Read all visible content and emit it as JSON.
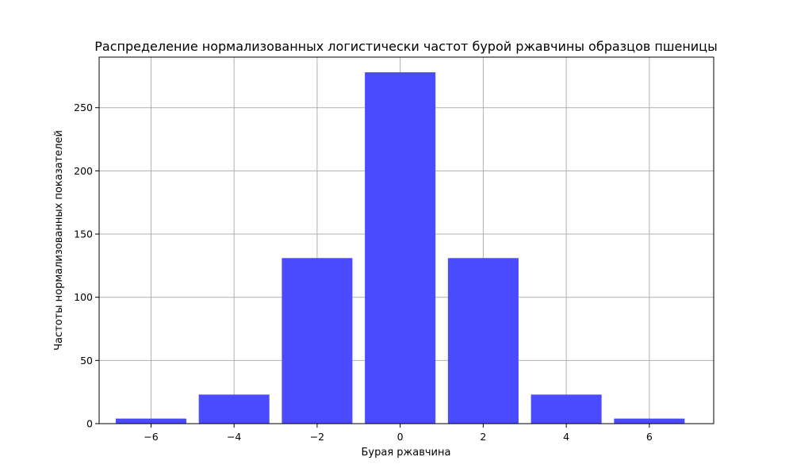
{
  "chart_data": {
    "type": "bar",
    "title": "Распределение нормализованных логистически частот бурой ржавчины образцов пшеницы",
    "xlabel": "Бурая ржавчина",
    "ylabel": "Частоты нормализованных показателей",
    "x": [
      -6,
      -4,
      -2,
      0,
      2,
      4,
      6
    ],
    "values": [
      4,
      23,
      131,
      278,
      131,
      23,
      4
    ],
    "bar_width": 1.7,
    "xlim": [
      -7.25,
      7.55
    ],
    "ylim": [
      0,
      290
    ],
    "xticks": [
      -6,
      -4,
      -2,
      0,
      2,
      4,
      6
    ],
    "xtick_labels": [
      "−6",
      "−4",
      "−2",
      "0",
      "2",
      "4",
      "6"
    ],
    "yticks": [
      0,
      50,
      100,
      150,
      200,
      250
    ],
    "ytick_labels": [
      "0",
      "50",
      "100",
      "150",
      "200",
      "250"
    ],
    "grid": true,
    "bar_color": "#4a4aff",
    "grid_color": "#b0b0b0"
  }
}
